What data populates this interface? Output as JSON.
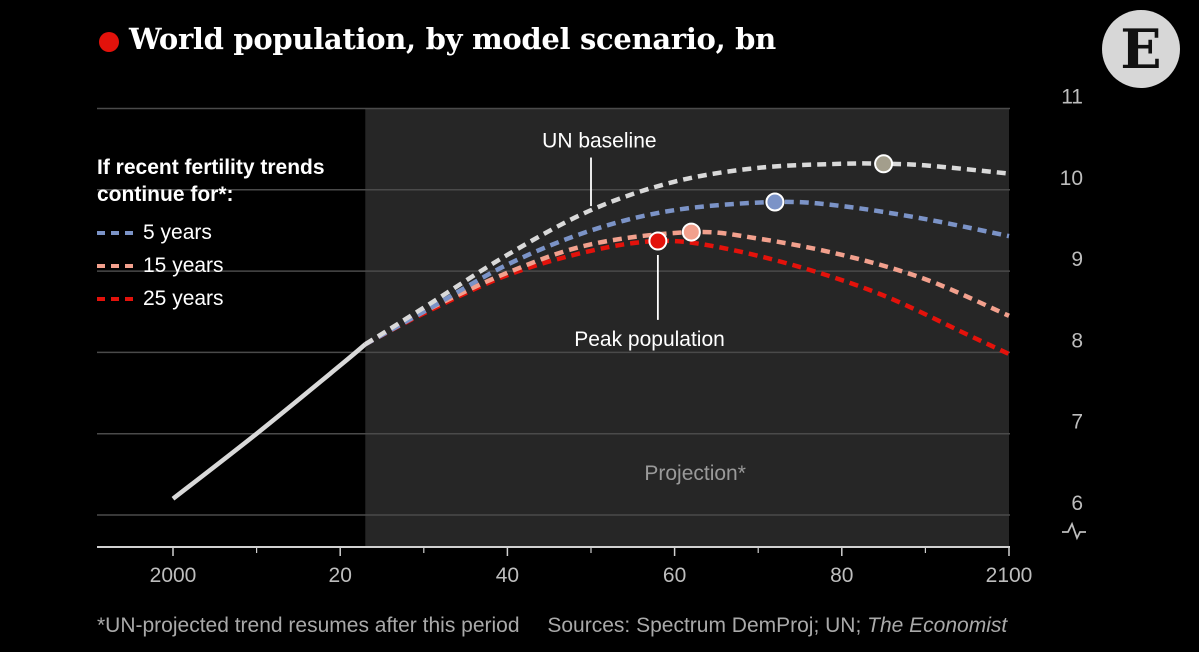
{
  "title": "World population, by model scenario, bn",
  "logo_letter": "E",
  "footnote": "*UN-projected trend resumes after this period",
  "sources_prefix": "Sources: Spectrum DemProj; UN; ",
  "sources_italic": "The Economist",
  "colors": {
    "background": "#000000",
    "projection_band": "#262626",
    "gridline": "#4a4a4a",
    "axis_text": "#bdbdbd",
    "historic": "#d9d9d9",
    "un_baseline": "#d9d9d9",
    "five_years": "#7b93c7",
    "fifteen_years": "#f2a08d",
    "twentyfive_years": "#e3120b",
    "title_dot": "#e3120b"
  },
  "legend": {
    "title": "If recent fertility trends continue for*:",
    "items": [
      {
        "label": "5 years",
        "color": "#7b93c7"
      },
      {
        "label": "15 years",
        "color": "#f2a08d"
      },
      {
        "label": "25 years",
        "color": "#e3120b"
      }
    ]
  },
  "chart_data": {
    "type": "line",
    "title": "World population, by model scenario, bn",
    "xlabel": "",
    "ylabel": "bn",
    "xlim": [
      1991,
      2100
    ],
    "ylim": [
      5.6,
      11
    ],
    "x_ticks": [
      2000,
      2020,
      2040,
      2060,
      2080,
      2100
    ],
    "x_tick_labels": [
      "2000",
      "20",
      "40",
      "60",
      "80",
      "2100"
    ],
    "x_minor_ticks": [
      2010,
      2030,
      2050,
      2070,
      2090
    ],
    "y_ticks": [
      6,
      7,
      8,
      9,
      10,
      11
    ],
    "y_tick_labels": [
      "6",
      "7",
      "8",
      "9",
      "10",
      "11"
    ],
    "y_axis_break": true,
    "projection_band": {
      "from": 2023,
      "to": 2100,
      "label": "Projection*"
    },
    "series": [
      {
        "name": "Historic",
        "style": "solid",
        "color": "#d9d9d9",
        "x": [
          2000,
          2010,
          2020,
          2023
        ],
        "y": [
          6.2,
          7.0,
          7.84,
          8.1
        ]
      },
      {
        "name": "UN baseline",
        "style": "dashed",
        "color": "#d9d9d9",
        "x": [
          2023,
          2030,
          2040,
          2050,
          2060,
          2070,
          2080,
          2085,
          2090,
          2100
        ],
        "y": [
          8.1,
          8.55,
          9.2,
          9.75,
          10.1,
          10.27,
          10.32,
          10.32,
          10.3,
          10.2
        ],
        "peak": {
          "x": 2085,
          "y": 10.32
        }
      },
      {
        "name": "5 years",
        "style": "dashed",
        "color": "#7b93c7",
        "x": [
          2023,
          2030,
          2040,
          2050,
          2060,
          2072,
          2080,
          2090,
          2100
        ],
        "y": [
          8.1,
          8.5,
          9.08,
          9.5,
          9.75,
          9.85,
          9.8,
          9.64,
          9.43
        ],
        "peak": {
          "x": 2072,
          "y": 9.85
        }
      },
      {
        "name": "15 years",
        "style": "dashed",
        "color": "#f2a08d",
        "x": [
          2023,
          2030,
          2040,
          2050,
          2062,
          2070,
          2080,
          2090,
          2100
        ],
        "y": [
          8.1,
          8.5,
          8.98,
          9.33,
          9.48,
          9.4,
          9.2,
          8.9,
          8.45
        ],
        "peak": {
          "x": 2062,
          "y": 9.48
        }
      },
      {
        "name": "25 years",
        "style": "dashed",
        "color": "#e3120b",
        "x": [
          2023,
          2030,
          2040,
          2050,
          2058,
          2065,
          2075,
          2085,
          2095,
          2100
        ],
        "y": [
          8.1,
          8.48,
          8.95,
          9.25,
          9.37,
          9.3,
          9.05,
          8.7,
          8.22,
          7.98
        ],
        "peak": {
          "x": 2058,
          "y": 9.37
        }
      }
    ],
    "annotations": [
      {
        "text": "UN baseline",
        "x": 2051,
        "y": 10.52,
        "points_to": {
          "x": 2050,
          "y": 9.75
        }
      },
      {
        "text": "Peak population",
        "x": 2057,
        "y": 8.08,
        "points_to": {
          "x": 2058,
          "y": 9.37
        }
      }
    ]
  }
}
